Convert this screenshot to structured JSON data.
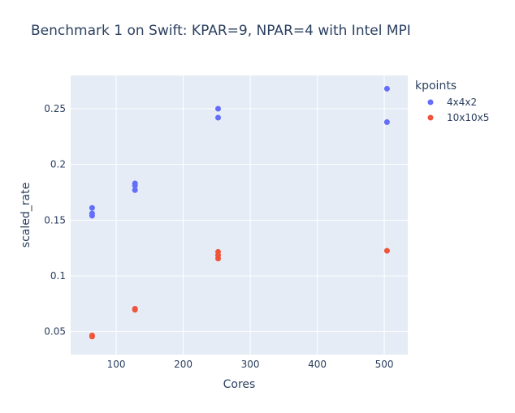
{
  "chart_data": {
    "type": "scatter",
    "title": "Benchmark 1 on Swift: KPAR=9, NPAR=4 with Intel MPI",
    "xlabel": "Cores",
    "ylabel": "scaled_rate",
    "xlim": [
      32,
      535
    ],
    "ylim": [
      0.0293,
      0.2799
    ],
    "xticks": [
      100,
      200,
      300,
      400,
      500
    ],
    "yticks": [
      0.05,
      0.1,
      0.15,
      0.2,
      0.25
    ],
    "xtick_labels": [
      "100",
      "200",
      "300",
      "400",
      "500"
    ],
    "ytick_labels": [
      "0.05",
      "0.1",
      "0.15",
      "0.2",
      "0.25"
    ],
    "grid": true,
    "legend": {
      "title": "kpoints",
      "position": "right"
    },
    "series": [
      {
        "name": "4x4x2",
        "color": "#636efa",
        "points": [
          {
            "x": 64,
            "y": 0.161
          },
          {
            "x": 64,
            "y": 0.156
          },
          {
            "x": 64,
            "y": 0.154
          },
          {
            "x": 128,
            "y": 0.183
          },
          {
            "x": 128,
            "y": 0.181
          },
          {
            "x": 128,
            "y": 0.177
          },
          {
            "x": 252,
            "y": 0.25
          },
          {
            "x": 252,
            "y": 0.242
          },
          {
            "x": 504,
            "y": 0.268
          },
          {
            "x": 504,
            "y": 0.238
          }
        ]
      },
      {
        "name": "10x10x5",
        "color": "#ef553b",
        "points": [
          {
            "x": 64,
            "y": 0.0465
          },
          {
            "x": 64,
            "y": 0.0455
          },
          {
            "x": 128,
            "y": 0.0705
          },
          {
            "x": 128,
            "y": 0.0695
          },
          {
            "x": 252,
            "y": 0.1215
          },
          {
            "x": 252,
            "y": 0.1185
          },
          {
            "x": 252,
            "y": 0.1155
          },
          {
            "x": 504,
            "y": 0.1225
          }
        ]
      }
    ]
  }
}
